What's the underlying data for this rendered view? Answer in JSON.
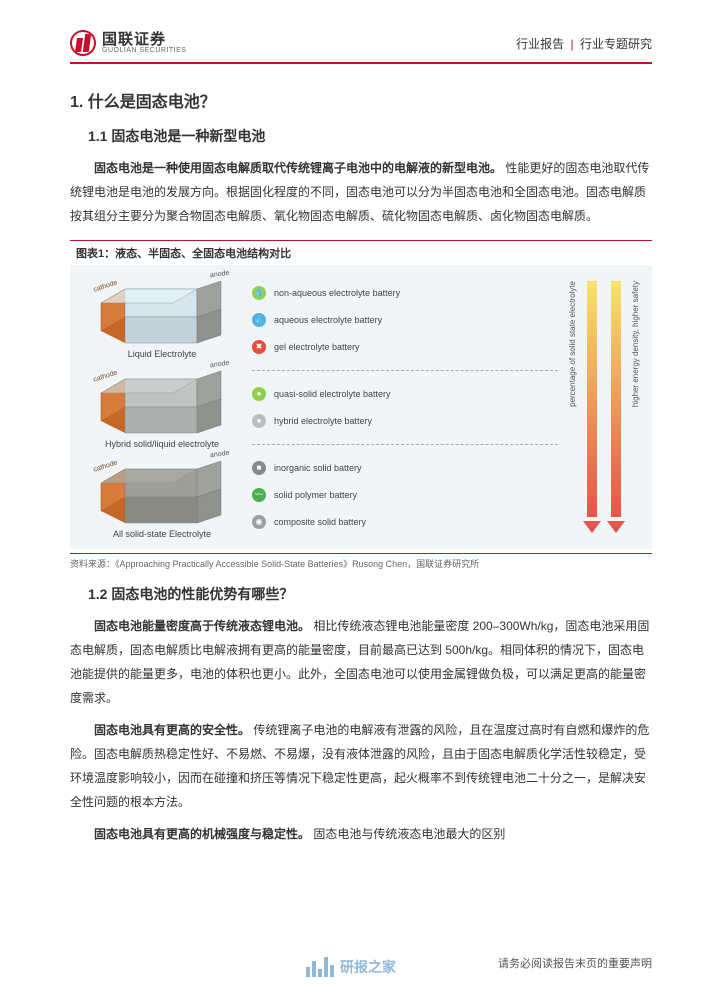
{
  "header": {
    "logo_cn": "国联证券",
    "logo_en": "GUOLIAN SECURITIES",
    "right_a": "行业报告",
    "right_b": "行业专题研究"
  },
  "section1": {
    "num": "1.",
    "title": "什么是固态电池？"
  },
  "section11": {
    "num": "1.1",
    "title": "固态电池是一种新型电池"
  },
  "para1_lead": "固态电池是一种使用固态电解质取代传统锂离子电池中的电解液的新型电池。",
  "para1_body": "性能更好的固态电池取代传统锂电池是电池的发展方向。根据固化程度的不同，固态电池可以分为半固态电池和全固态电池。固态电解质按其组分主要分为聚合物固态电解质、氧化物固态电解质、硫化物固态电解质、卤化物固态电解质。",
  "figure1": {
    "title": "图表1：液态、半固态、全固态电池结构对比",
    "batteries": [
      {
        "label": "Liquid Electrolyte",
        "cathode": "cathode",
        "anode": "anode",
        "cathode_color": "#d97b3a",
        "mid_fill": "#d6e6ef",
        "anode_color": "#9fa19c"
      },
      {
        "label": "Hybrid solid/liquid electrolyte",
        "cathode": "cathode",
        "anode": "anode",
        "cathode_color": "#d97b3a",
        "mid_fill": "#bfc4c3",
        "anode_color": "#9fa19c"
      },
      {
        "label": "All solid-state Electrolyte",
        "cathode": "cathode",
        "anode": "anode",
        "cathode_color": "#d97b3a",
        "mid_fill": "#9e9e96",
        "anode_color": "#9fa19c"
      }
    ],
    "types": [
      {
        "dot_bg": "#8fd14f",
        "dot_icon": "💧",
        "label": "non-aqueous electrolyte battery"
      },
      {
        "dot_bg": "#5ab0e0",
        "dot_icon": "💧",
        "label": "aqueous electrolyte battery"
      },
      {
        "dot_bg": "#e74c3c",
        "dot_icon": "✖",
        "label": "gel electrolyte battery"
      },
      {
        "dot_bg": "#8fd14f",
        "dot_icon": "●",
        "label": "quasi-solid electrolyte battery"
      },
      {
        "dot_bg": "#bdbdbd",
        "dot_icon": "●",
        "label": "hybrid electrolyte battery"
      },
      {
        "dot_bg": "#888888",
        "dot_icon": "■",
        "label": "inorganic solid battery"
      },
      {
        "dot_bg": "#4caf50",
        "dot_icon": "〰",
        "label": "solid polymer battery"
      },
      {
        "dot_bg": "#9e9e9e",
        "dot_icon": "◉",
        "label": "composite solid battery"
      }
    ],
    "arrow1": {
      "label": "percentage of solid state electrolyte",
      "grad_top": "#f6e36a",
      "grad_bot": "#e6554a"
    },
    "arrow2": {
      "label": "higher energy density, higher safety",
      "grad_top": "#f6e36a",
      "grad_bot": "#e6554a"
    },
    "source": "资料来源：《Approaching Practically Accessible Solid-State Batteries》Rusong Chen，国联证券研究所"
  },
  "section12": {
    "num": "1.2",
    "title": "固态电池的性能优势有哪些？"
  },
  "para2_lead": "固态电池能量密度高于传统液态锂电池。",
  "para2_body": "相比传统液态锂电池能量密度 200–300Wh/kg，固态电池采用固态电解质，固态电解质比电解液拥有更高的能量密度，目前最高已达到 500h/kg。相同体积的情况下，固态电池能提供的能量更多，电池的体积也更小。此外，全固态电池可以使用金属锂做负极，可以满足更高的能量密度需求。",
  "para3_lead": "固态电池具有更高的安全性。",
  "para3_body": "传统锂离子电池的电解液有泄露的风险，且在温度过高时有自燃和爆炸的危险。固态电解质热稳定性好、不易燃、不易爆，没有液体泄露的风险，且由于固态电解质化学活性较稳定，受环境温度影响较小，因而在碰撞和挤压等情况下稳定性更高，起火概率不到传统锂电池二十分之一，是解决安全性问题的根本方法。",
  "para4_lead": "固态电池具有更高的机械强度与稳定性。",
  "para4_body": "固态电池与传统液态电池最大的区别",
  "footer": "请务必阅读报告末页的重要声明",
  "watermark": "研报之家",
  "colors": {
    "accent": "#c8102e",
    "fig_bg": "#f0f5f8",
    "wm_blue": "#3b7db5"
  }
}
